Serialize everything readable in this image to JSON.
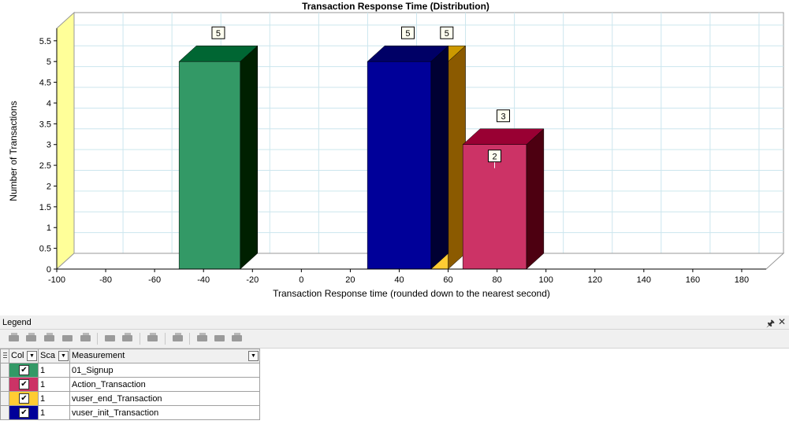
{
  "chart_data": {
    "type": "bar",
    "title": "Transaction Response Time (Distribution)",
    "xlabel": "Transaction Response time (rounded down to the nearest second)",
    "ylabel": "Number of Transactions",
    "xlim": [
      -100,
      190
    ],
    "ylim": [
      0,
      5.8
    ],
    "xticks": [
      -100,
      -80,
      -60,
      -40,
      -20,
      0,
      20,
      40,
      60,
      80,
      100,
      120,
      140,
      160,
      180
    ],
    "yticks": [
      0,
      0.5,
      1,
      1.5,
      2,
      2.5,
      3,
      3.5,
      4,
      4.5,
      5,
      5.5
    ],
    "xtick_labels": [
      "-100",
      "-80",
      "-60",
      "-40",
      "-20",
      "0",
      "20",
      "40",
      "60",
      "80",
      "100",
      "120",
      "140",
      "160",
      "180"
    ],
    "ytick_labels": [
      "0",
      "0.5",
      "1",
      "1.5",
      "2",
      "2.5",
      "3",
      "3.5",
      "4",
      "4.5",
      "5",
      "5.5"
    ],
    "grid": true,
    "bars": [
      {
        "series": "vuser_end_Transaction",
        "x_start": 53,
        "x_end": 60,
        "value": 5,
        "label": "5",
        "color": "#ffcc33",
        "side": "#8b5a00",
        "top": "#cc9900"
      },
      {
        "series": "01_Signup",
        "x_start": -50,
        "x_end": -25,
        "value": 5,
        "label": "5",
        "color": "#339966",
        "side": "#002000",
        "top": "#006633"
      },
      {
        "series": "vuser_init_Transaction",
        "x_start": 27,
        "x_end": 53,
        "value": 5,
        "label": "5",
        "color": "#000099",
        "side": "#000033",
        "top": "#000066"
      },
      {
        "series": "Action_Transaction",
        "x_start": 66,
        "x_end": 92,
        "value": 3,
        "label": "3",
        "label2": "2",
        "color": "#cc3366",
        "side": "#4d0011",
        "top": "#990033"
      }
    ],
    "wall_color": "#ffff99",
    "floor_color": "#ffffff",
    "grid_color": "#cce6ee"
  },
  "legend": {
    "title": "Legend",
    "columns": {
      "color": "Col",
      "scale": "Sca",
      "measurement": "Measurement"
    },
    "rows": [
      {
        "color": "#339966",
        "checked": "✔",
        "scale": "1",
        "measurement": "01_Signup"
      },
      {
        "color": "#cc3366",
        "checked": "✔",
        "scale": "1",
        "measurement": "Action_Transaction"
      },
      {
        "color": "#ffcc33",
        "checked": "✔",
        "scale": "1",
        "measurement": "vuser_end_Transaction"
      },
      {
        "color": "#000099",
        "checked": "✔",
        "scale": "1",
        "measurement": "vuser_init_Transaction"
      }
    ]
  },
  "icons": {
    "pin": "pin-icon",
    "close": "close-icon",
    "dropdown": "dropdown-arrow-icon",
    "grip": "grip-icon",
    "check": "checkmark-icon"
  }
}
